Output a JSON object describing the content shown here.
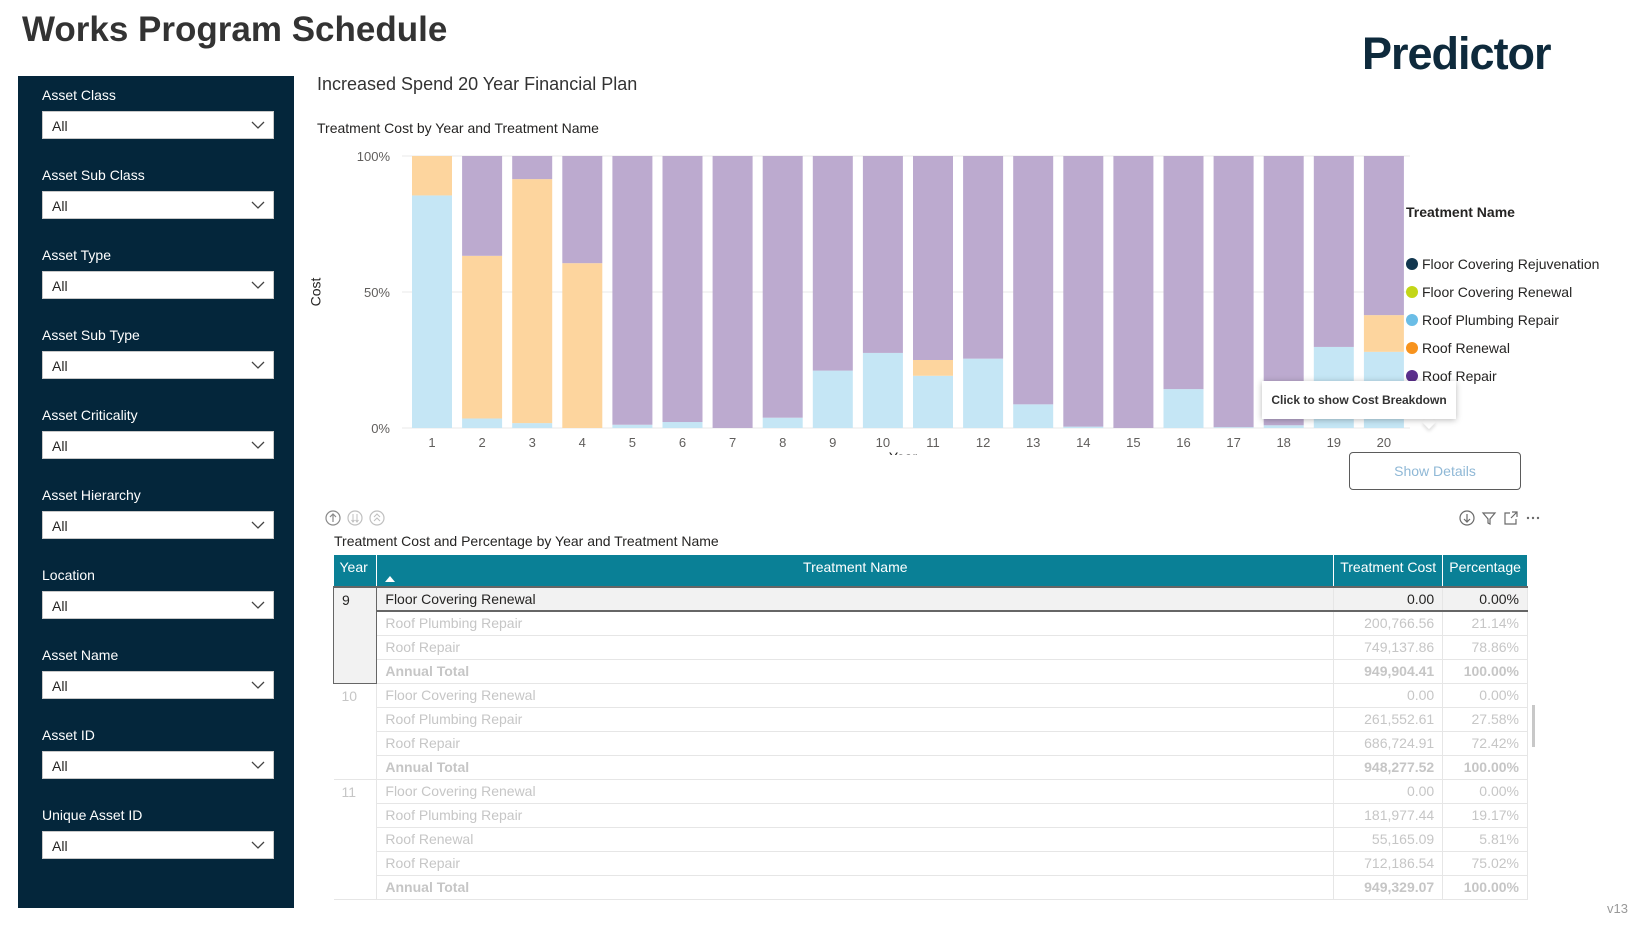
{
  "page": {
    "title": "Works Program Schedule",
    "logo": "Predictor",
    "version": "v13"
  },
  "filters": [
    {
      "label": "Asset Class",
      "value": "All"
    },
    {
      "label": "Asset Sub Class",
      "value": "All"
    },
    {
      "label": "Asset Type",
      "value": "All"
    },
    {
      "label": "Asset Sub Type",
      "value": "All"
    },
    {
      "label": "Asset Criticality",
      "value": "All"
    },
    {
      "label": "Asset Hierarchy",
      "value": "All"
    },
    {
      "label": "Location",
      "value": "All"
    },
    {
      "label": "Asset Name",
      "value": "All"
    },
    {
      "label": "Asset ID",
      "value": "All"
    },
    {
      "label": "Unique Asset ID",
      "value": "All"
    }
  ],
  "plan_heading": "Increased Spend 20 Year Financial Plan",
  "chart_data": {
    "type": "bar",
    "stacked": "100%",
    "title": "Treatment Cost by Year and Treatment Name",
    "xlabel": "Year",
    "ylabel": "Cost",
    "ylim": [
      0,
      100
    ],
    "yticks": [
      "0%",
      "50%",
      "100%"
    ],
    "categories": [
      "1",
      "2",
      "3",
      "4",
      "5",
      "6",
      "7",
      "8",
      "9",
      "10",
      "11",
      "12",
      "13",
      "14",
      "15",
      "16",
      "17",
      "18",
      "19",
      "20"
    ],
    "series": [
      {
        "name": "Floor Covering Rejuvenation",
        "color": "#12374f",
        "values": [
          0,
          0,
          0,
          0,
          0,
          0,
          0,
          0,
          0,
          0,
          0,
          0,
          0,
          0,
          0,
          0,
          0,
          0,
          0,
          0
        ]
      },
      {
        "name": "Floor Covering Renewal",
        "color": "#c3d617",
        "values": [
          0,
          0,
          0,
          0,
          0,
          0,
          0,
          0,
          0,
          0,
          0,
          0,
          0,
          0,
          0,
          0,
          0,
          0,
          0,
          0
        ]
      },
      {
        "name": "Roof Plumbing Repair",
        "color": "#6bbde6",
        "values": [
          85.5,
          3.5,
          1.8,
          0,
          1.2,
          2.2,
          0,
          3.8,
          21.1,
          27.6,
          19.2,
          25.5,
          8.7,
          0.5,
          0,
          14.3,
          0.3,
          1.0,
          29.8,
          28.0
        ]
      },
      {
        "name": "Roof Renewal",
        "color": "#f7931e",
        "values": [
          14.5,
          59.8,
          89.7,
          60.6,
          0,
          0,
          0,
          0,
          0,
          0,
          5.8,
          0,
          0,
          0,
          0,
          0,
          0,
          0,
          0,
          13.5
        ]
      },
      {
        "name": "Roof Repair",
        "color": "#5b2f8c",
        "values": [
          0,
          36.7,
          8.5,
          39.4,
          98.8,
          97.8,
          100,
          96.2,
          78.9,
          72.4,
          75.0,
          74.5,
          91.3,
          99.5,
          100,
          85.7,
          99.7,
          99.0,
          70.2,
          58.5
        ]
      }
    ],
    "legend": {
      "title": "Treatment Name",
      "position": "right"
    },
    "grid": true
  },
  "tooltip": "Click to show Cost Breakdown",
  "show_details_label": "Show Details",
  "table": {
    "title": "Treatment Cost and Percentage by Year and Treatment Name",
    "columns": [
      "Year",
      "Treatment Name",
      "Treatment Cost",
      "Percentage"
    ],
    "rows": [
      {
        "year": "9",
        "name": "Floor Covering Renewal",
        "cost": "0.00",
        "pct": "0.00%"
      },
      {
        "year": "",
        "name": "Roof Plumbing Repair",
        "cost": "200,766.56",
        "pct": "21.14%"
      },
      {
        "year": "",
        "name": "Roof Repair",
        "cost": "749,137.86",
        "pct": "78.86%"
      },
      {
        "year": "",
        "name": "Annual Total",
        "cost": "949,904.41",
        "pct": "100.00%"
      },
      {
        "year": "10",
        "name": "Floor Covering Renewal",
        "cost": "0.00",
        "pct": "0.00%"
      },
      {
        "year": "",
        "name": "Roof Plumbing Repair",
        "cost": "261,552.61",
        "pct": "27.58%"
      },
      {
        "year": "",
        "name": "Roof Repair",
        "cost": "686,724.91",
        "pct": "72.42%"
      },
      {
        "year": "",
        "name": "Annual Total",
        "cost": "948,277.52",
        "pct": "100.00%"
      },
      {
        "year": "11",
        "name": "Floor Covering Renewal",
        "cost": "0.00",
        "pct": "0.00%"
      },
      {
        "year": "",
        "name": "Roof Plumbing Repair",
        "cost": "181,977.44",
        "pct": "19.17%"
      },
      {
        "year": "",
        "name": "Roof Renewal",
        "cost": "55,165.09",
        "pct": "5.81%"
      },
      {
        "year": "",
        "name": "Roof Repair",
        "cost": "712,186.54",
        "pct": "75.02%"
      },
      {
        "year": "",
        "name": "Annual Total",
        "cost": "949,329.07",
        "pct": "100.00%"
      }
    ]
  }
}
